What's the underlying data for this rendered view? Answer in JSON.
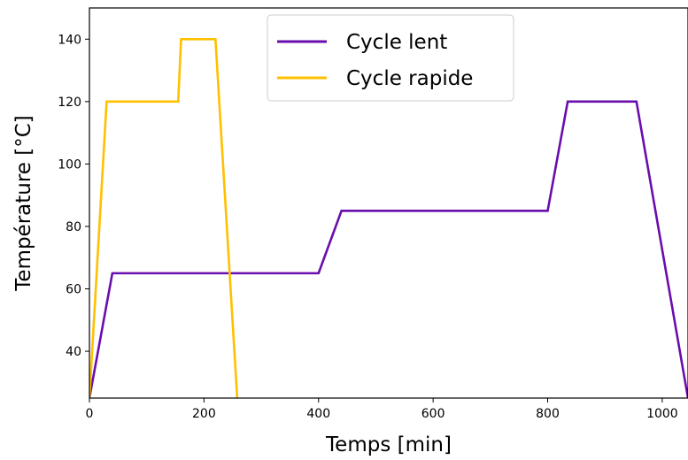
{
  "chart_data": {
    "type": "line",
    "xlabel": "Temps [min]",
    "ylabel": "Température [°C]",
    "xlim": [
      0,
      1045
    ],
    "ylim": [
      25,
      150
    ],
    "xticks": [
      0,
      200,
      400,
      600,
      800,
      1000
    ],
    "yticks": [
      40,
      60,
      80,
      100,
      120,
      140
    ],
    "grid": false,
    "legend_position": "top-center",
    "series": [
      {
        "name": "Cycle lent",
        "color": "#6a0dad",
        "x": [
          0,
          40,
          400,
          440,
          800,
          835,
          955,
          1045
        ],
        "y": [
          25,
          65,
          65,
          85,
          85,
          120,
          120,
          25
        ]
      },
      {
        "name": "Cycle rapide",
        "color": "#ffc000",
        "x": [
          0,
          30,
          155,
          160,
          220,
          258
        ],
        "y": [
          25,
          120,
          120,
          140,
          140,
          25
        ]
      }
    ]
  }
}
